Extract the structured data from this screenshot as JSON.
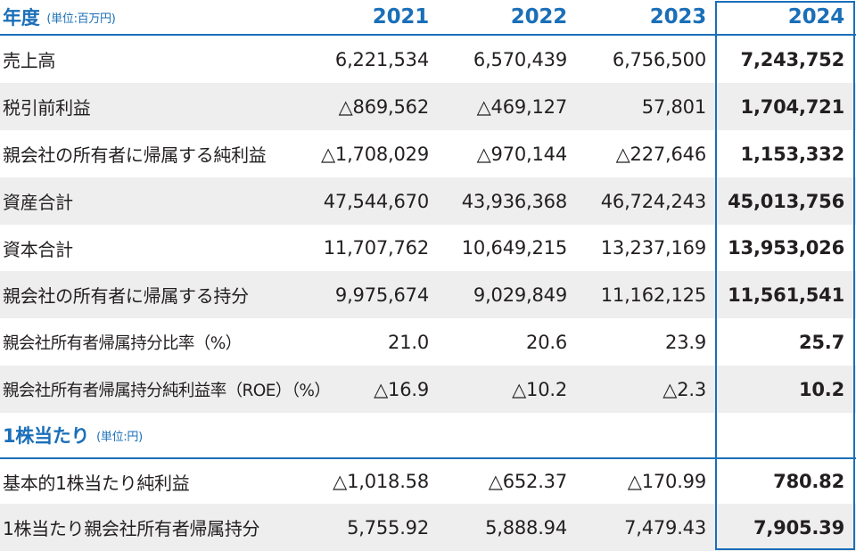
{
  "header": {
    "title": "年度",
    "unit": "(単位:百万円)",
    "years": [
      "2021",
      "2022",
      "2023",
      "2024"
    ]
  },
  "rows": [
    {
      "label": "売上高",
      "values": [
        "6,221,534",
        "6,570,439",
        "6,756,500",
        "7,243,752"
      ]
    },
    {
      "label": "税引前利益",
      "values": [
        "△869,562",
        "△469,127",
        "57,801",
        "1,704,721"
      ]
    },
    {
      "label": "親会社の所有者に帰属する純利益",
      "values": [
        "△1,708,029",
        "△970,144",
        "△227,646",
        "1,153,332"
      ]
    },
    {
      "label": "資産合計",
      "values": [
        "47,544,670",
        "43,936,368",
        "46,724,243",
        "45,013,756"
      ]
    },
    {
      "label": "資本合計",
      "values": [
        "11,707,762",
        "10,649,215",
        "13,237,169",
        "13,953,026"
      ]
    },
    {
      "label": "親会社の所有者に帰属する持分",
      "values": [
        "9,975,674",
        "9,029,849",
        "11,162,125",
        "11,561,541"
      ]
    },
    {
      "label": "親会社所有者帰属持分比率（%）",
      "values": [
        "21.0",
        "20.6",
        "23.9",
        "25.7"
      ]
    },
    {
      "label": "親会社所有者帰属持分純利益率（ROE）（%）",
      "values": [
        "△16.9",
        "△10.2",
        "△2.3",
        "10.2"
      ]
    }
  ],
  "section2": {
    "title": "1株当たり",
    "unit": "(単位:円)"
  },
  "rows2": [
    {
      "label": "基本的1株当たり純利益",
      "values": [
        "△1,018.58",
        "△652.37",
        "△170.99",
        "780.82"
      ]
    },
    {
      "label": "1株当たり親会社所有者帰属持分",
      "values": [
        "5,755.92",
        "5,888.94",
        "7,479.43",
        "7,905.39"
      ]
    }
  ],
  "colors": {
    "accent": "#1a6fb8",
    "shade": "#eeeeee",
    "text": "#231f20"
  }
}
